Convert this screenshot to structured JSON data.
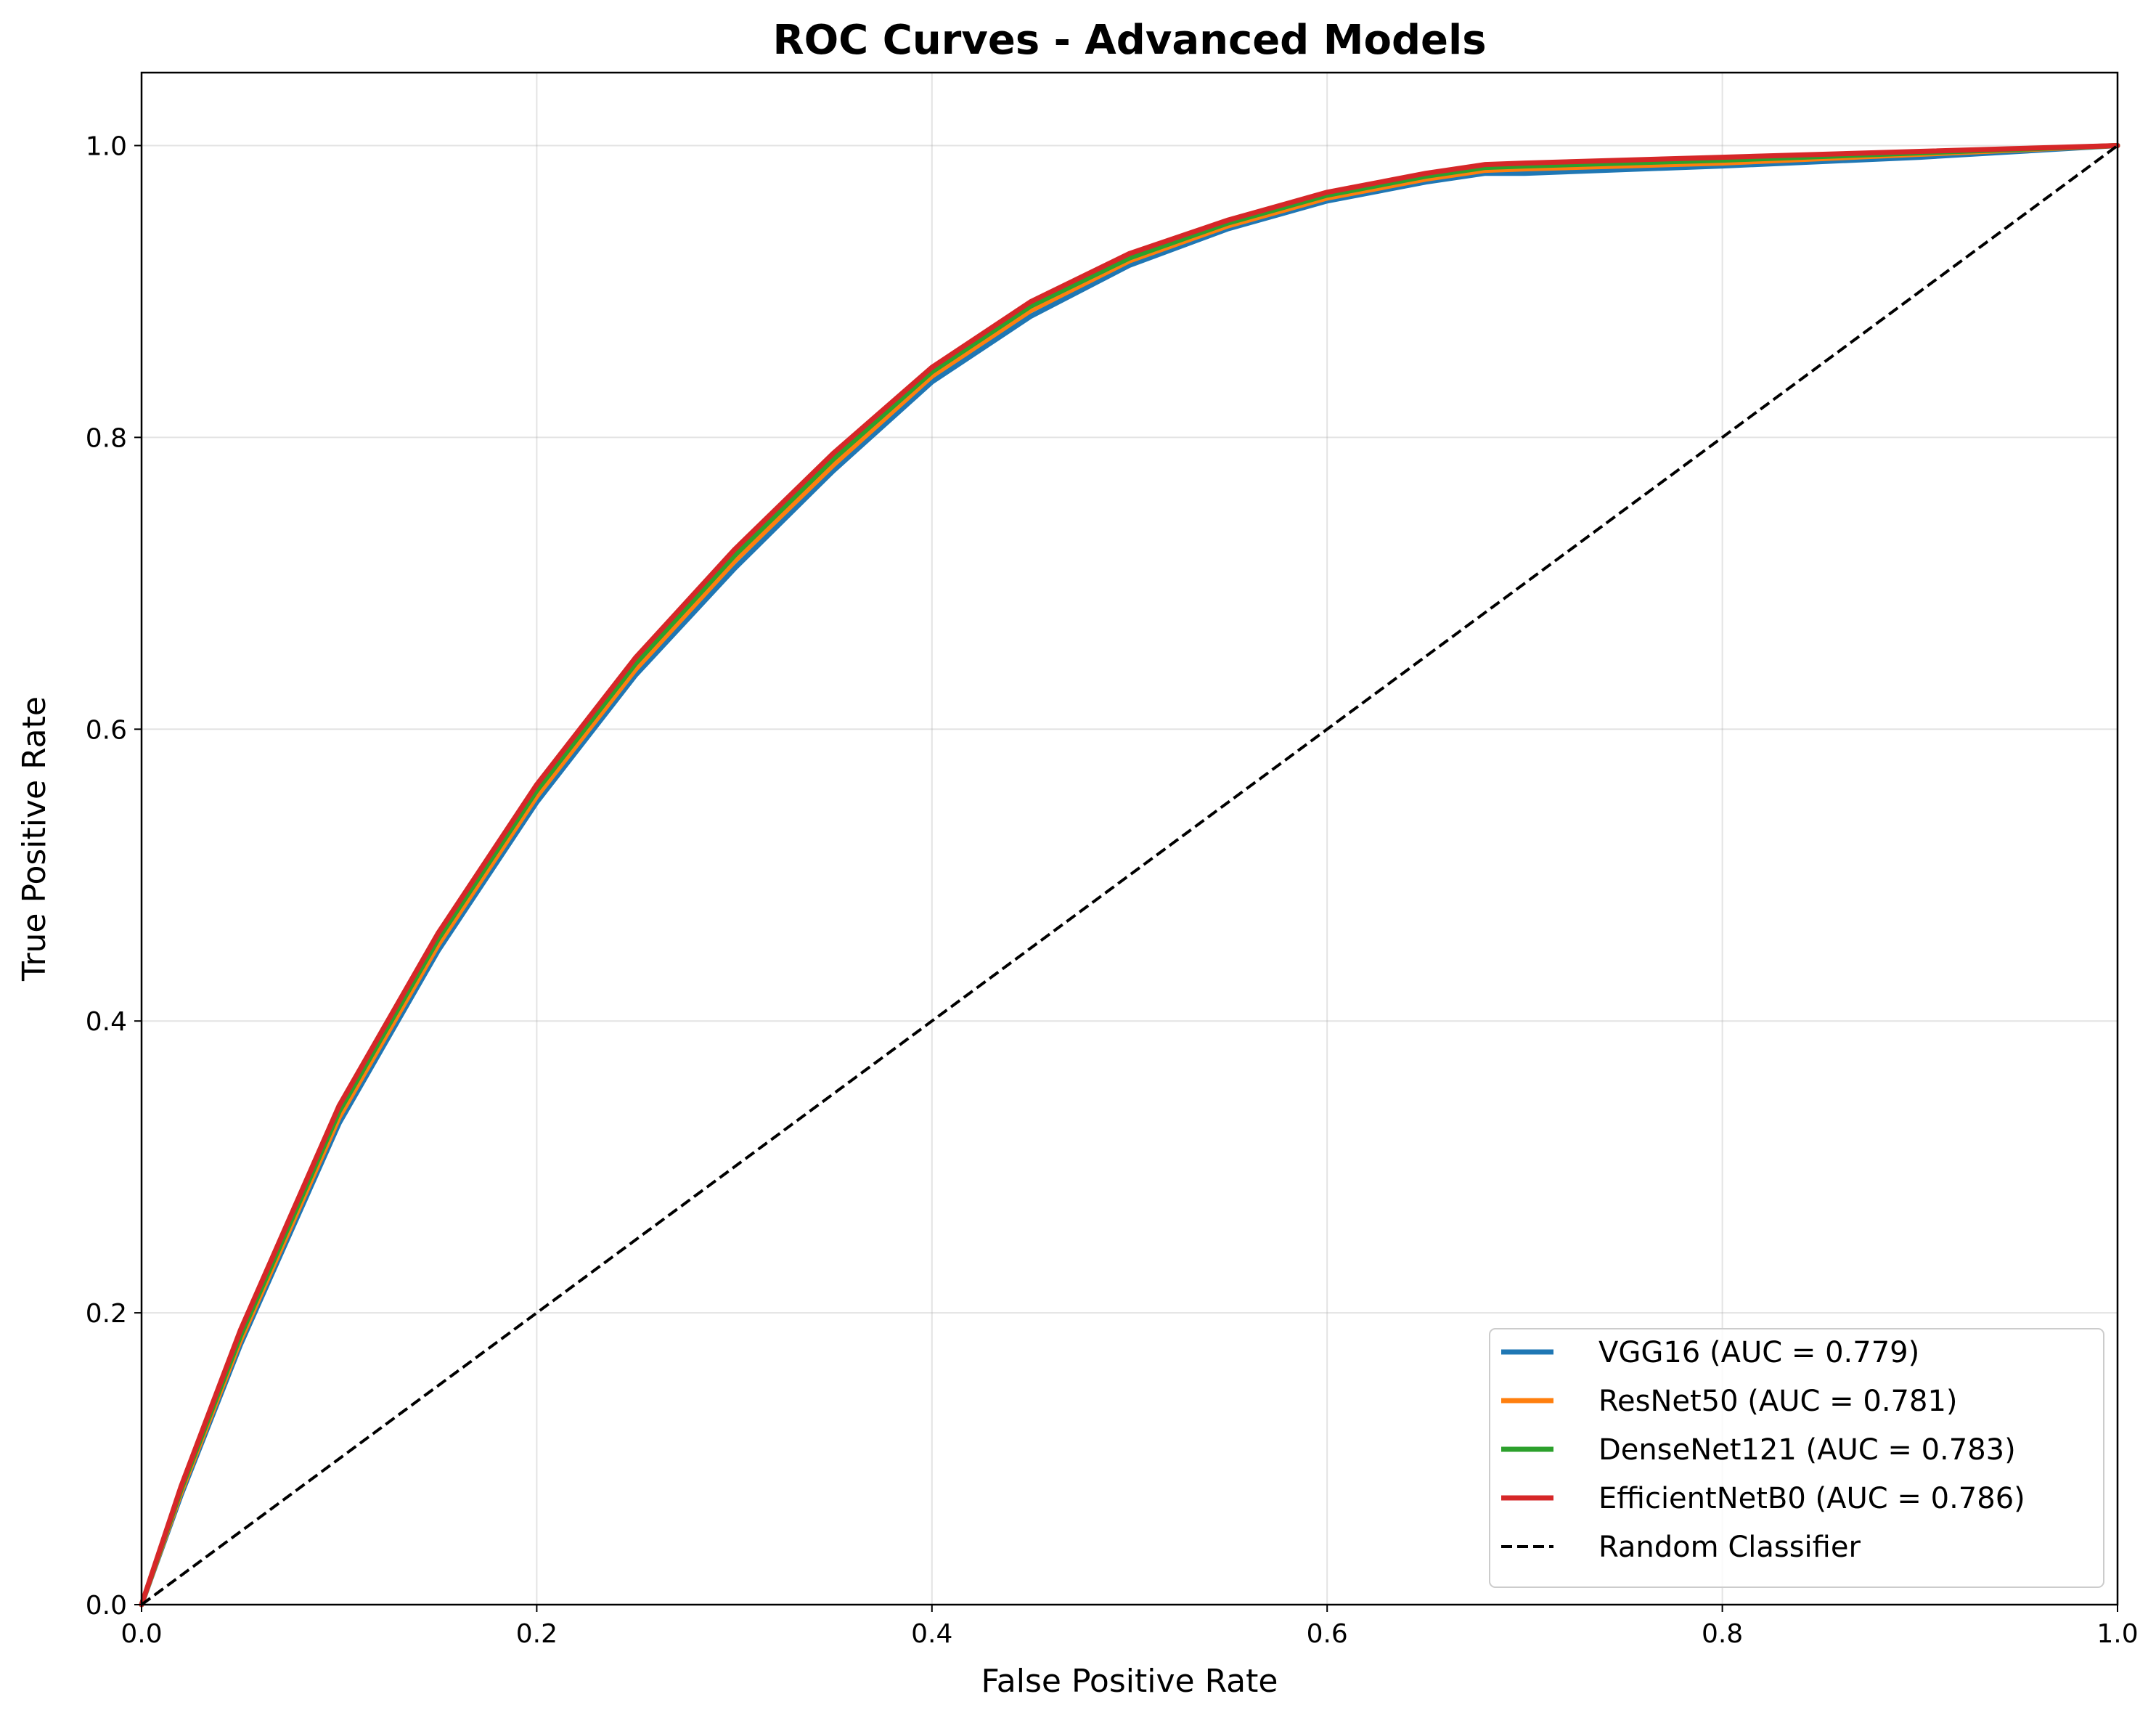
{
  "chart_data": {
    "type": "line",
    "title": "ROC Curves - Advanced Models",
    "xlabel": "False Positive Rate",
    "ylabel": "True Positive Rate",
    "xlim": [
      0.0,
      1.0
    ],
    "ylim": [
      0.0,
      1.05
    ],
    "xticks": [
      "0.0",
      "0.2",
      "0.4",
      "0.6",
      "0.8",
      "1.0"
    ],
    "yticks": [
      "0.0",
      "0.2",
      "0.4",
      "0.6",
      "0.8",
      "1.0"
    ],
    "grid": true,
    "legend_position": "lower-right",
    "series": [
      {
        "name": "VGG16 (AUC = 0.779)",
        "color": "#1f77b4",
        "style": "solid",
        "x": [
          0.0,
          0.02,
          0.05,
          0.1,
          0.15,
          0.2,
          0.25,
          0.3,
          0.35,
          0.4,
          0.45,
          0.5,
          0.55,
          0.6,
          0.65,
          0.68,
          0.7,
          0.8,
          0.9,
          1.0
        ],
        "y": [
          0.0,
          0.075,
          0.178,
          0.33,
          0.448,
          0.55,
          0.637,
          0.71,
          0.777,
          0.838,
          0.883,
          0.918,
          0.943,
          0.962,
          0.975,
          0.981,
          0.981,
          0.986,
          0.992,
          1.0
        ]
      },
      {
        "name": "ResNet50 (AUC = 0.781)",
        "color": "#ff7f0e",
        "style": "solid",
        "x": [
          0.0,
          0.02,
          0.05,
          0.1,
          0.15,
          0.2,
          0.25,
          0.3,
          0.35,
          0.4,
          0.45,
          0.5,
          0.55,
          0.6,
          0.65,
          0.68,
          0.7,
          0.8,
          0.9,
          1.0
        ],
        "y": [
          0.0,
          0.077,
          0.181,
          0.334,
          0.452,
          0.554,
          0.641,
          0.715,
          0.781,
          0.842,
          0.887,
          0.921,
          0.945,
          0.964,
          0.977,
          0.983,
          0.984,
          0.988,
          0.994,
          1.0
        ]
      },
      {
        "name": "DenseNet121 (AUC = 0.783)",
        "color": "#2ca02c",
        "style": "solid",
        "x": [
          0.0,
          0.02,
          0.05,
          0.1,
          0.15,
          0.2,
          0.25,
          0.3,
          0.35,
          0.4,
          0.45,
          0.5,
          0.55,
          0.6,
          0.65,
          0.68,
          0.7,
          0.8,
          0.9,
          1.0
        ],
        "y": [
          0.0,
          0.079,
          0.184,
          0.338,
          0.456,
          0.558,
          0.645,
          0.719,
          0.785,
          0.845,
          0.89,
          0.923,
          0.947,
          0.966,
          0.979,
          0.985,
          0.986,
          0.99,
          0.995,
          1.0
        ]
      },
      {
        "name": "EfficientNetB0 (AUC = 0.786)",
        "color": "#d62728",
        "style": "solid",
        "x": [
          0.0,
          0.02,
          0.05,
          0.1,
          0.15,
          0.2,
          0.25,
          0.3,
          0.35,
          0.4,
          0.45,
          0.5,
          0.55,
          0.6,
          0.65,
          0.68,
          0.7,
          0.8,
          0.9,
          1.0
        ],
        "y": [
          0.0,
          0.081,
          0.188,
          0.342,
          0.46,
          0.562,
          0.649,
          0.723,
          0.789,
          0.848,
          0.893,
          0.926,
          0.949,
          0.968,
          0.981,
          0.987,
          0.988,
          0.992,
          0.996,
          1.0
        ]
      },
      {
        "name": "Random Classifier",
        "color": "#000000",
        "style": "dashed",
        "x": [
          0.0,
          1.0
        ],
        "y": [
          0.0,
          1.0
        ]
      }
    ]
  }
}
